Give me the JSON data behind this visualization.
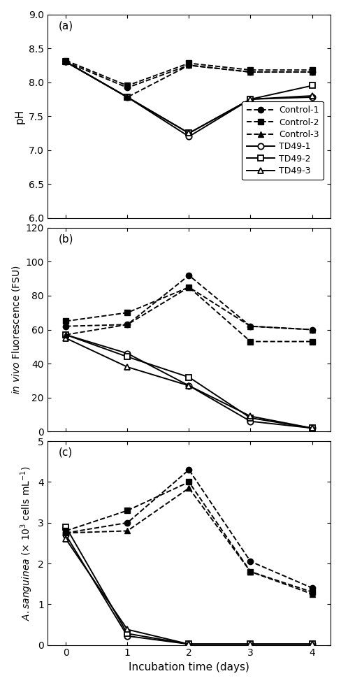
{
  "days": [
    0,
    1,
    2,
    3,
    4
  ],
  "panel_a": {
    "title": "(a)",
    "ylabel": "pH",
    "ylim": [
      6.0,
      9.0
    ],
    "yticks": [
      6.0,
      6.5,
      7.0,
      7.5,
      8.0,
      8.5,
      9.0
    ],
    "control1": [
      8.3,
      7.92,
      8.25,
      8.15,
      8.15
    ],
    "control2": [
      8.32,
      7.95,
      8.28,
      8.18,
      8.18
    ],
    "control3": [
      8.3,
      7.78,
      8.25,
      8.15,
      8.15
    ],
    "td49_1": [
      8.3,
      7.78,
      7.2,
      7.75,
      7.78
    ],
    "td49_2": [
      8.3,
      7.78,
      7.25,
      7.75,
      7.95
    ],
    "td49_3": [
      8.3,
      7.78,
      7.25,
      7.75,
      7.8
    ]
  },
  "panel_b": {
    "title": "(b)",
    "ylim": [
      0,
      120
    ],
    "yticks": [
      0,
      20,
      40,
      60,
      80,
      100,
      120
    ],
    "control1": [
      62,
      63,
      92,
      62,
      60
    ],
    "control2": [
      65,
      70,
      85,
      53,
      53
    ],
    "control3": [
      57,
      63,
      85,
      62,
      60
    ],
    "td49_1": [
      57,
      46,
      27,
      6,
      2
    ],
    "td49_2": [
      57,
      44,
      32,
      8,
      2
    ],
    "td49_3": [
      55,
      38,
      27,
      9,
      2
    ]
  },
  "panel_c": {
    "title": "(c)",
    "ylim": [
      0,
      5.0
    ],
    "yticks": [
      0,
      1.0,
      2.0,
      3.0,
      4.0,
      5.0
    ],
    "control1": [
      2.75,
      3.0,
      4.3,
      2.05,
      1.4
    ],
    "control2": [
      2.8,
      3.3,
      4.0,
      1.8,
      1.3
    ],
    "control3": [
      2.75,
      2.8,
      3.85,
      1.8,
      1.25
    ],
    "td49_1": [
      2.7,
      0.22,
      0.02,
      0.02,
      0.02
    ],
    "td49_2": [
      2.9,
      0.28,
      0.02,
      0.02,
      0.02
    ],
    "td49_3": [
      2.6,
      0.38,
      0.02,
      0.02,
      0.02
    ]
  },
  "line_color": "#000000",
  "xlabel": "Incubation time (days)",
  "xticks": [
    0,
    1,
    2,
    3,
    4
  ],
  "legend_labels": [
    "Control-1",
    "Control-2",
    "Control-3",
    "TD49-1",
    "TD49-2",
    "TD49-3"
  ]
}
